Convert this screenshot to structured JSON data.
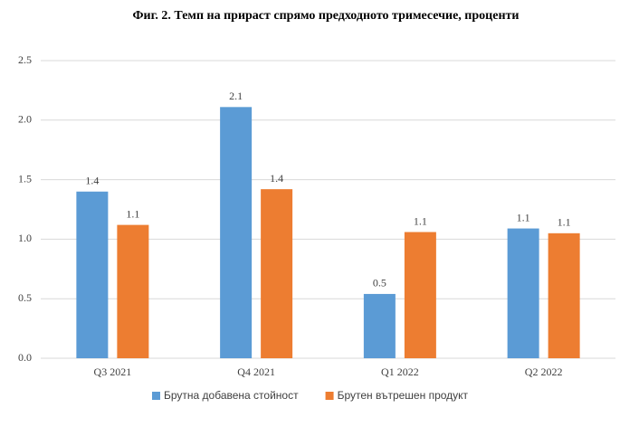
{
  "chart_data": {
    "type": "bar",
    "title": "Фиг. 2. Темп на прираст спрямо предходното тримесечие, проценти",
    "categories": [
      "Q3 2021",
      "Q4 2021",
      "Q1 2022",
      "Q2 2022"
    ],
    "series": [
      {
        "name": "Брутна добавена стойност",
        "color": "#5b9bd5",
        "values": [
          1.4,
          2.11,
          0.54,
          1.09
        ],
        "value_labels": [
          "1.4",
          "2.1",
          "0.5",
          "1.1"
        ]
      },
      {
        "name": "Брутен вътрешен продукт",
        "color": "#ed7d31",
        "values": [
          1.12,
          1.42,
          1.06,
          1.05
        ],
        "value_labels": [
          "1.1",
          "1.4",
          "1.1",
          "1.1"
        ]
      }
    ],
    "ylim": [
      0,
      2.5
    ],
    "yticks": [
      {
        "value": 0,
        "label": "0.0"
      },
      0.5,
      {
        "value": 1,
        "label": "1.0"
      },
      1.5,
      {
        "value": 2,
        "label": "2.0"
      },
      2.5
    ],
    "grid": true
  }
}
